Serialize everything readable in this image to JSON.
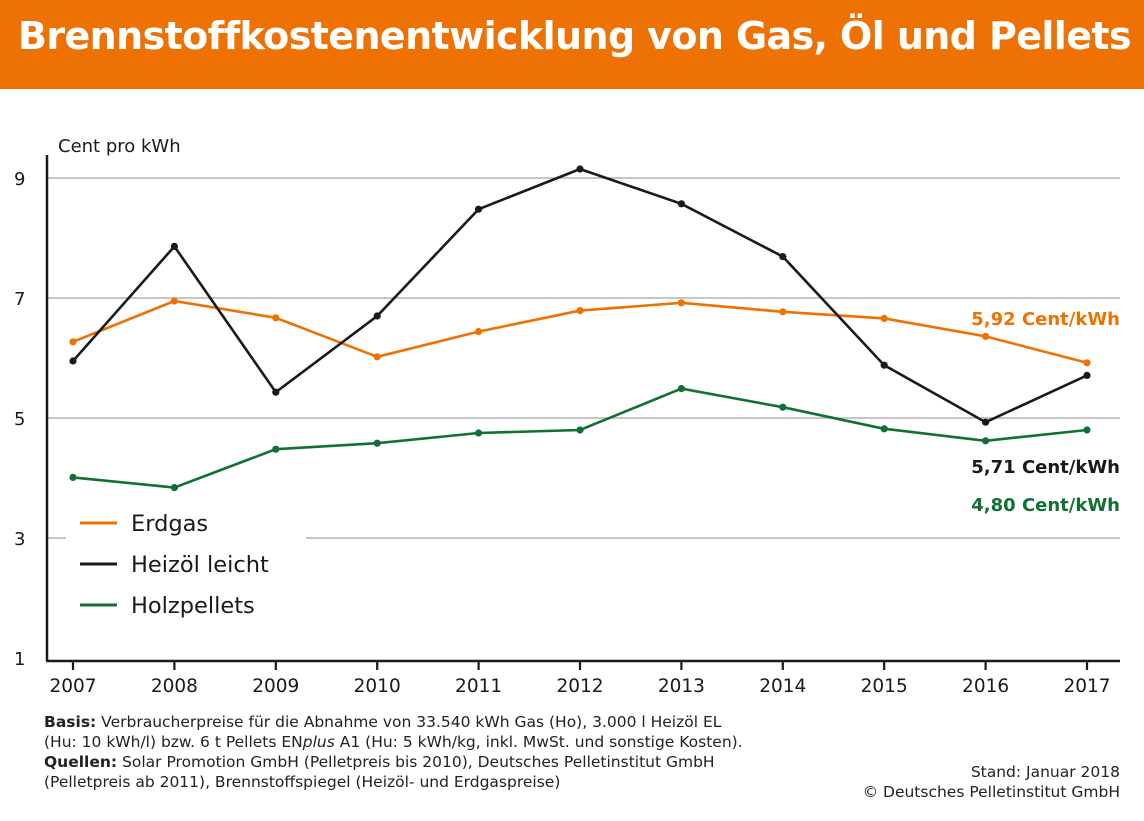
{
  "header": {
    "title": "Brennstoffkostenentwicklung von Gas, Öl und Pellets"
  },
  "colors": {
    "header_bg": "#ee7203",
    "gas": "#ee7203",
    "oil": "#1a1a1a",
    "pellets": "#107132",
    "grid": "#b3b3b3"
  },
  "chart_data": {
    "type": "line",
    "title": "Brennstoffkostenentwicklung von Gas, Öl und Pellets",
    "ylabel": "Cent pro kWh",
    "xlabel": "",
    "x": [
      "2007",
      "2008",
      "2009",
      "2010",
      "2011",
      "2012",
      "2013",
      "2014",
      "2015",
      "2016",
      "2017"
    ],
    "y_ticks": [
      "1",
      "3",
      "5",
      "7",
      "9"
    ],
    "ylim": [
      1,
      9.3
    ],
    "grid": true,
    "legend_position": "bottom-left",
    "series": [
      {
        "name": "Erdgas",
        "color": "#ee7203",
        "values": [
          6.27,
          6.95,
          6.67,
          6.02,
          6.44,
          6.79,
          6.92,
          6.77,
          6.66,
          6.36,
          5.92
        ],
        "end_label": "5,92 Cent/kWh"
      },
      {
        "name": "Heizöl leicht",
        "color": "#1a1a1a",
        "values": [
          5.95,
          7.86,
          5.43,
          6.7,
          8.48,
          9.15,
          8.57,
          7.69,
          5.88,
          4.93,
          5.71
        ],
        "end_label": "5,71 Cent/kWh"
      },
      {
        "name": "Holzpellets",
        "color": "#107132",
        "values": [
          4.01,
          3.84,
          4.48,
          4.58,
          4.75,
          4.8,
          5.49,
          5.18,
          4.82,
          4.62,
          4.8
        ],
        "end_label": "4,80 Cent/kWh"
      }
    ]
  },
  "footer": {
    "basis_label": "Basis:",
    "basis_text_1": " Verbraucherpreise für die Abnahme von 33.540 kWh Gas (Ho), 3.000 l Heizöl EL",
    "basis_text_2": "(Hu: 10 kWh/l) bzw. 6 t Pellets EN",
    "basis_plus": "plus",
    "basis_text_3": " A1 (Hu: 5 kWh/kg, inkl. MwSt. und sonstige Kosten).",
    "sources_label": "Quellen:",
    "sources_text_1": " Solar Promotion GmbH (Pelletpreis bis 2010), Deutsches Pelletinstitut GmbH",
    "sources_text_2": "(Pelletpreis ab 2011), Brennstoffspiegel (Heizöl- und Erdgaspreise)",
    "stand": "Stand: Januar 2018",
    "copyright": "© Deutsches Pelletinstitut GmbH"
  }
}
